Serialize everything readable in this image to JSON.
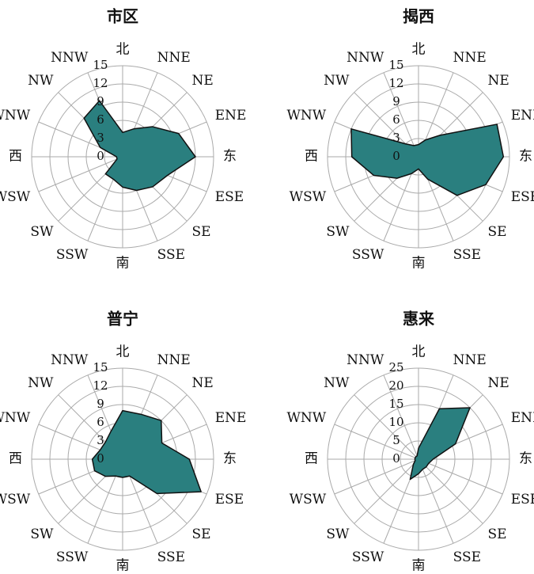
{
  "chart_data": [
    {
      "type": "radar",
      "title": "市区",
      "color": "#2a7f7f",
      "categories": [
        "北",
        "NNE",
        "NE",
        "ENE",
        "东",
        "ESE",
        "SE",
        "SSE",
        "南",
        "SSW",
        "SW",
        "WSW",
        "西",
        "WNW",
        "NW",
        "NNW"
      ],
      "values": [
        4,
        5,
        7,
        10,
        12,
        8,
        7,
        6,
        5,
        4,
        4,
        1,
        1,
        4,
        9,
        10
      ],
      "ylim": [
        0,
        15
      ],
      "yticks": [
        0,
        3,
        6,
        9,
        12,
        15
      ]
    },
    {
      "type": "radar",
      "title": "揭西",
      "color": "#2a7f7f",
      "categories": [
        "北",
        "NNE",
        "NE",
        "ENE",
        "东",
        "ESE",
        "SE",
        "SSE",
        "南",
        "SSW",
        "SW",
        "WSW",
        "西",
        "WNW",
        "NW",
        "NNW"
      ],
      "values": [
        2,
        3,
        5,
        14,
        14,
        12,
        9,
        4,
        2,
        3,
        5,
        8,
        11,
        12,
        3,
        2
      ],
      "ylim": [
        0,
        15
      ],
      "yticks": [
        0,
        3,
        6,
        9,
        12,
        15
      ]
    },
    {
      "type": "radar",
      "title": "普宁",
      "color": "#2a7f7f",
      "categories": [
        "北",
        "NNE",
        "NE",
        "ENE",
        "东",
        "ESE",
        "SE",
        "SSE",
        "南",
        "SSW",
        "SW",
        "WSW",
        "西",
        "WNW",
        "NW",
        "NNW"
      ],
      "values": [
        8,
        8,
        9,
        7,
        11,
        14,
        8,
        3,
        3,
        3,
        4,
        5,
        5,
        4,
        4,
        5
      ],
      "ylim": [
        0,
        15
      ],
      "yticks": [
        0,
        3,
        6,
        9,
        12,
        15
      ]
    },
    {
      "type": "radar",
      "title": "惠来",
      "color": "#2a7f7f",
      "categories": [
        "北",
        "NNE",
        "NE",
        "ENE",
        "东",
        "ESE",
        "SE",
        "SSE",
        "南",
        "SSW",
        "SW",
        "WSW",
        "西",
        "WNW",
        "NW",
        "NNW"
      ],
      "values": [
        3,
        15,
        20,
        11,
        4,
        3,
        3,
        3,
        4,
        6,
        2,
        1,
        1,
        1,
        1,
        1
      ],
      "ylim": [
        0,
        25
      ],
      "yticks": [
        0,
        5,
        10,
        15,
        20,
        25
      ]
    }
  ]
}
